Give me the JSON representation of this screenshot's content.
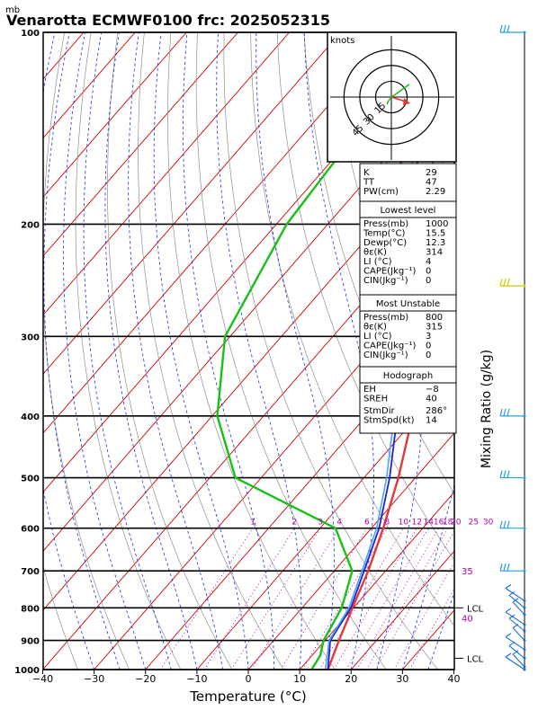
{
  "header": {
    "unit_label": "mb",
    "title": "Venarotta ECMWF0100  frc: 2025052315"
  },
  "chart_data": {
    "type": "skew-t",
    "xlabel": "Temperature (°C)",
    "ylabel_right": "Mixing Ratio (g/kg)",
    "x_ticks": [
      "−40",
      "−30",
      "−20",
      "−10",
      "0",
      "10",
      "20",
      "30",
      "40"
    ],
    "x_tick_values": [
      -40,
      -30,
      -20,
      -10,
      0,
      10,
      20,
      30,
      40
    ],
    "p_ticks": [
      100,
      200,
      300,
      400,
      500,
      600,
      700,
      800,
      900,
      1000
    ],
    "xlim": [
      -40,
      40
    ],
    "plim": [
      1000,
      100
    ],
    "mixing_ratio_labels": [
      "1",
      "2",
      "3",
      "4",
      "6",
      "8",
      "10",
      "12",
      "14",
      "16",
      "18",
      "20",
      "25",
      "30"
    ],
    "mixing_ratio_values": [
      1,
      2,
      3,
      4,
      6,
      8,
      10,
      12,
      14,
      16,
      18,
      20,
      25,
      30
    ],
    "right_labels": [
      {
        "text": "35",
        "p": 700
      },
      {
        "text": "LCL",
        "p": 800
      },
      {
        "text": "40",
        "p": 830
      },
      {
        "text": "LCL",
        "p": 960
      }
    ],
    "series": [
      {
        "name": "Temperature",
        "color": "#e03a3a",
        "points": [
          [
            15.5,
            1000
          ],
          [
            12.7,
            900
          ],
          [
            9.8,
            800
          ],
          [
            6.6,
            700
          ],
          [
            2.3,
            600
          ],
          [
            -3.3,
            500
          ],
          [
            -11.0,
            400
          ],
          [
            -22.0,
            300
          ],
          [
            -40.5,
            250
          ],
          [
            -50,
            200
          ],
          [
            -58,
            150
          ],
          [
            -62,
            100
          ]
        ]
      },
      {
        "name": "Dewpoint",
        "color": "#18c018",
        "points": [
          [
            12.3,
            1000
          ],
          [
            11.6,
            950
          ],
          [
            9.7,
            900
          ],
          [
            7.7,
            800
          ],
          [
            3.5,
            700
          ],
          [
            -7.0,
            600
          ],
          [
            -35.0,
            500
          ],
          [
            -49,
            400
          ],
          [
            -61,
            300
          ],
          [
            -68,
            200
          ],
          [
            -72,
            100
          ]
        ]
      },
      {
        "name": "Parcel",
        "color": "#2222cc",
        "points": [
          [
            15.5,
            1000
          ],
          [
            11.0,
            900
          ],
          [
            9.5,
            800
          ],
          [
            5.8,
            700
          ],
          [
            1.5,
            600
          ],
          [
            -5.0,
            500
          ],
          [
            -14.0,
            400
          ],
          [
            -28,
            300
          ],
          [
            -45,
            200
          ],
          [
            -70,
            100
          ]
        ]
      },
      {
        "name": "Virtual",
        "color": "#4aa3ff",
        "points": [
          [
            15.0,
            1000
          ],
          [
            10.8,
            900
          ],
          [
            9.1,
            800
          ],
          [
            5.4,
            700
          ],
          [
            1.0,
            600
          ],
          [
            -5.6,
            500
          ],
          [
            -14.6,
            400
          ],
          [
            -28.6,
            300
          ],
          [
            -46,
            200
          ],
          [
            -71,
            100
          ]
        ]
      }
    ]
  },
  "table": {
    "top": [
      {
        "k": "K",
        "v": "29"
      },
      {
        "k": "TT",
        "v": "47"
      },
      {
        "k": "PW(cm)",
        "v": "2.29"
      }
    ],
    "lowest_title": "Lowest level",
    "lowest": [
      {
        "k": "Press(mb)",
        "v": "1000"
      },
      {
        "k": "Temp(°C)",
        "v": "15.5"
      },
      {
        "k": "Dewp(°C)",
        "v": "12.3"
      },
      {
        "k": "θε(K)",
        "v": "314"
      },
      {
        "k": "LI (°C)",
        "v": "4"
      },
      {
        "k": "CAPE(Jkg⁻¹)",
        "v": "0"
      },
      {
        "k": "CIN(Jkg⁻¹)",
        "v": "0"
      }
    ],
    "mu_title": "Most Unstable",
    "mu": [
      {
        "k": "Press(mb)",
        "v": "800"
      },
      {
        "k": "θε(K)",
        "v": "315"
      },
      {
        "k": "LI (°C)",
        "v": "3"
      },
      {
        "k": "CAPE(Jkg⁻¹)",
        "v": "0"
      },
      {
        "k": "CIN(Jkg⁻¹)",
        "v": "0"
      }
    ],
    "hodo_title": "Hodograph",
    "hodo": [
      {
        "k": "EH",
        "v": "−8"
      },
      {
        "k": "SREH",
        "v": "40"
      },
      {
        "k": "StmDir",
        "v": "286°"
      },
      {
        "k": "StmSpd(kt)",
        "v": "14"
      }
    ]
  },
  "hodograph": {
    "units_label": "knots",
    "ring_labels": [
      "15",
      "30",
      "45"
    ],
    "ring_values": [
      15,
      30,
      45
    ]
  },
  "colors": {
    "isotherm": "#d00000",
    "dry_adiabat": "#909090",
    "moist_adiabat": "#1030e0",
    "mixing_ratio": "#b000b0",
    "wind": "#2a9fd6"
  }
}
